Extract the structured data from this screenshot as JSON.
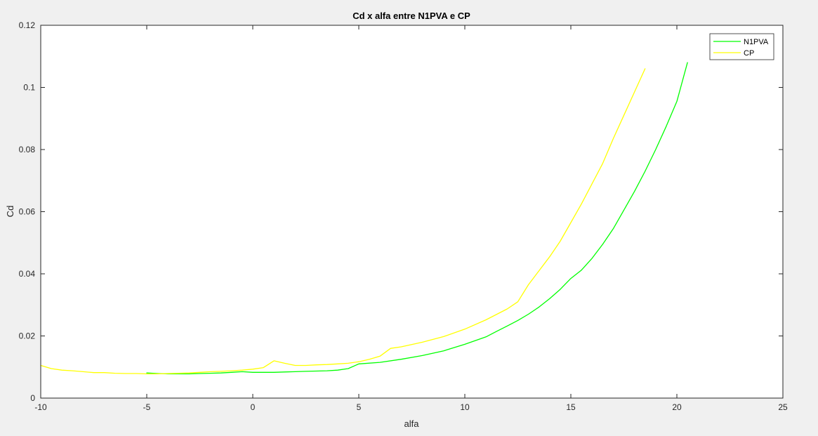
{
  "chart_data": {
    "type": "line",
    "title": "Cd x alfa entre N1PVA e CP",
    "xlabel": "alfa",
    "ylabel": "Cd",
    "xlim": [
      -10,
      25
    ],
    "ylim": [
      0,
      0.12
    ],
    "xticks": [
      -10,
      -5,
      0,
      5,
      10,
      15,
      20,
      25
    ],
    "yticks": [
      0,
      0.02,
      0.04,
      0.06,
      0.08,
      0.1,
      0.12
    ],
    "xtick_labels": [
      "-10",
      "-5",
      "0",
      "5",
      "10",
      "15",
      "20",
      "25"
    ],
    "ytick_labels": [
      "0",
      "0.02",
      "0.04",
      "0.06",
      "0.08",
      "0.1",
      "0.12"
    ],
    "grid": false,
    "legend": "top-right",
    "background_color": "#ffffff",
    "figure_color": "#f0f0f0",
    "series": [
      {
        "name": "N1PVA",
        "color": "#00ff00",
        "points": [
          [
            -5,
            0.0081
          ],
          [
            -4.5,
            0.0079
          ],
          [
            -4,
            0.0078
          ],
          [
            -3.5,
            0.0078
          ],
          [
            -3,
            0.0078
          ],
          [
            -2.5,
            0.0079
          ],
          [
            -2,
            0.008
          ],
          [
            -1.5,
            0.0081
          ],
          [
            -1,
            0.0083
          ],
          [
            -0.5,
            0.0085
          ],
          [
            0,
            0.0083
          ],
          [
            0.5,
            0.0083
          ],
          [
            1,
            0.0083
          ],
          [
            1.5,
            0.0084
          ],
          [
            2,
            0.0085
          ],
          [
            2.5,
            0.0086
          ],
          [
            3,
            0.0087
          ],
          [
            3.5,
            0.0088
          ],
          [
            4,
            0.009
          ],
          [
            4.5,
            0.0095
          ],
          [
            5,
            0.011
          ],
          [
            6,
            0.0115
          ],
          [
            7,
            0.0125
          ],
          [
            8,
            0.0137
          ],
          [
            9,
            0.0152
          ],
          [
            10,
            0.0173
          ],
          [
            11,
            0.0197
          ],
          [
            11.5,
            0.0215
          ],
          [
            12,
            0.0232
          ],
          [
            12.5,
            0.025
          ],
          [
            13,
            0.027
          ],
          [
            13.5,
            0.0293
          ],
          [
            14,
            0.032
          ],
          [
            14.5,
            0.035
          ],
          [
            15,
            0.0385
          ],
          [
            15.5,
            0.0412
          ],
          [
            16,
            0.045
          ],
          [
            16.5,
            0.0495
          ],
          [
            17,
            0.0545
          ],
          [
            17.5,
            0.0605
          ],
          [
            18,
            0.0665
          ],
          [
            18.5,
            0.073
          ],
          [
            19,
            0.08
          ],
          [
            19.5,
            0.0875
          ],
          [
            20,
            0.0955
          ],
          [
            20.5,
            0.108
          ]
        ]
      },
      {
        "name": "CP",
        "color": "#ffff00",
        "points": [
          [
            -10,
            0.0105
          ],
          [
            -9.5,
            0.0095
          ],
          [
            -9,
            0.009
          ],
          [
            -8.5,
            0.0088
          ],
          [
            -8,
            0.0085
          ],
          [
            -7.5,
            0.0082
          ],
          [
            -7,
            0.0082
          ],
          [
            -6.5,
            0.008
          ],
          [
            -6,
            0.0079
          ],
          [
            -5.5,
            0.0079
          ],
          [
            -5,
            0.0078
          ],
          [
            -4.5,
            0.0078
          ],
          [
            -4,
            0.0079
          ],
          [
            -3.5,
            0.008
          ],
          [
            -3,
            0.0081
          ],
          [
            -2.5,
            0.0083
          ],
          [
            -2,
            0.0085
          ],
          [
            -1.5,
            0.0086
          ],
          [
            -1,
            0.0088
          ],
          [
            -0.5,
            0.009
          ],
          [
            0,
            0.0093
          ],
          [
            0.5,
            0.0098
          ],
          [
            1,
            0.012
          ],
          [
            1.5,
            0.0112
          ],
          [
            2,
            0.0105
          ],
          [
            2.5,
            0.0105
          ],
          [
            3,
            0.0107
          ],
          [
            3.5,
            0.0108
          ],
          [
            4,
            0.011
          ],
          [
            4.5,
            0.0112
          ],
          [
            5,
            0.0117
          ],
          [
            5.5,
            0.0125
          ],
          [
            6,
            0.0135
          ],
          [
            6.5,
            0.016
          ],
          [
            7,
            0.0165
          ],
          [
            8,
            0.018
          ],
          [
            9,
            0.0198
          ],
          [
            10,
            0.0222
          ],
          [
            11,
            0.0252
          ],
          [
            12,
            0.0287
          ],
          [
            12.5,
            0.031
          ],
          [
            13,
            0.0365
          ],
          [
            13.5,
            0.041
          ],
          [
            14,
            0.0455
          ],
          [
            14.5,
            0.0505
          ],
          [
            15,
            0.0565
          ],
          [
            15.5,
            0.0625
          ],
          [
            16,
            0.069
          ],
          [
            16.5,
            0.0755
          ],
          [
            17,
            0.0835
          ],
          [
            17.5,
            0.091
          ],
          [
            18,
            0.0985
          ],
          [
            18.5,
            0.106
          ]
        ]
      }
    ]
  }
}
